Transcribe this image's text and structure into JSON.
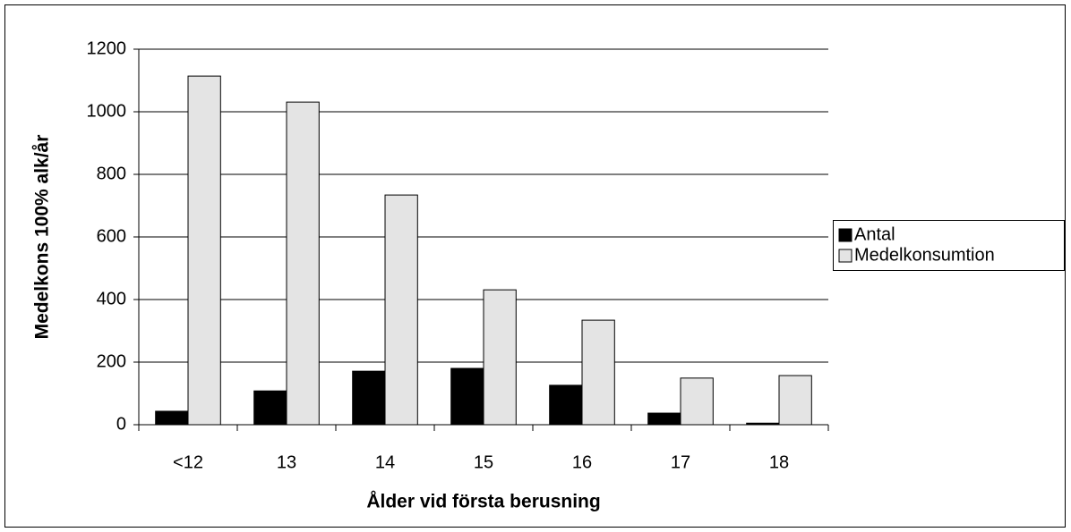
{
  "chart_data": {
    "type": "bar",
    "x_label": "Ålder vid första berusning",
    "y_label": "Medelkons 100% alk/år",
    "categories": [
      "<12",
      "13",
      "14",
      "15",
      "16",
      "17",
      "18"
    ],
    "series": [
      {
        "name": "Antal",
        "color": "#000000",
        "values": [
          43,
          108,
          171,
          180,
          126,
          37,
          5
        ]
      },
      {
        "name": "Medelkonsumtion",
        "color": "#e4e4e4",
        "values": [
          1114,
          1031,
          734,
          431,
          334,
          149,
          157
        ]
      }
    ],
    "ylim": [
      0,
      1200
    ],
    "yticks": [
      0,
      200,
      400,
      600,
      800,
      1000,
      1200
    ],
    "grid": true,
    "legend": "right"
  }
}
